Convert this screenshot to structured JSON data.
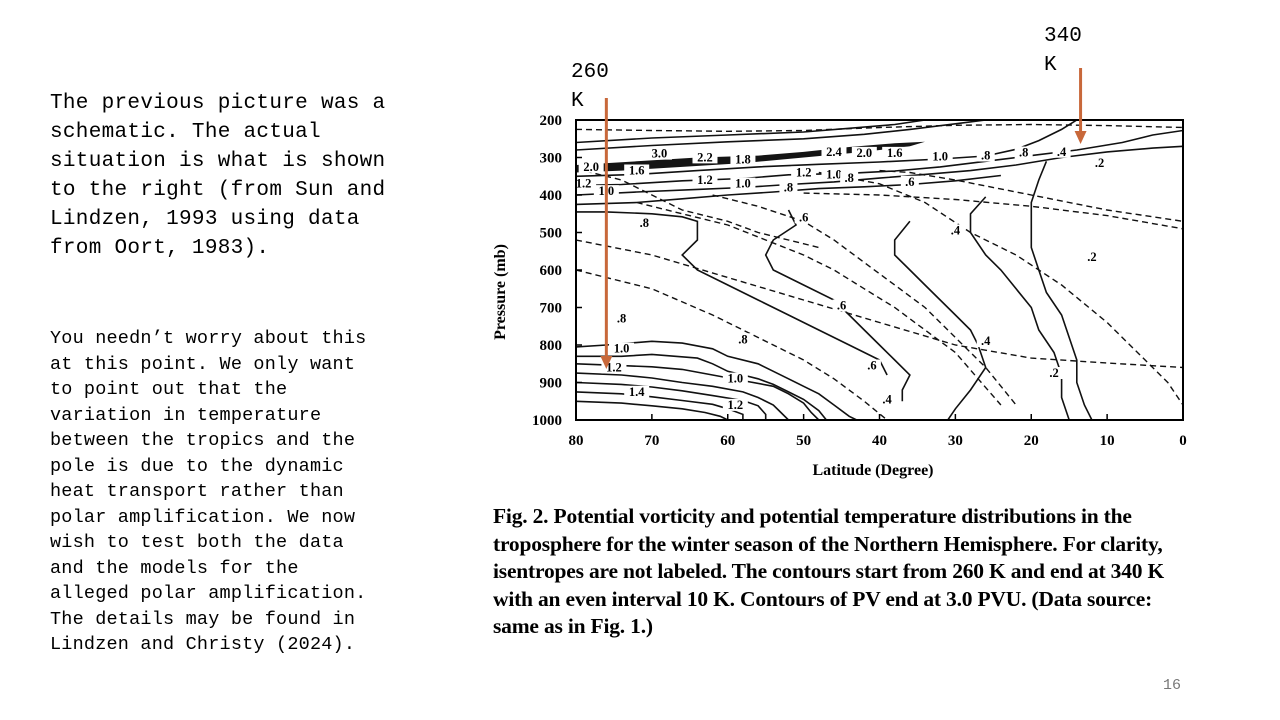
{
  "text": {
    "para1": "The previous picture was a\nschematic.  The actual\nsituation is what is shown\nto the right (from Sun and\nLindzen, 1993 using data\nfrom Oort, 1983).",
    "para2": "You needn’t worry about this\nat this point.  We only want\nto point out that the\nvariation in temperature\nbetween the tropics and the\npole is due to the dynamic\nheat transport rather than\npolar amplification.  We now\nwish to test both the data\nand the models for the\nalleged polar amplification.\nThe details may be found in\nLindzen and Christy (2024).",
    "arrow_left_label": "260\nK",
    "arrow_right_label": "340\nK",
    "caption_fig": "Fig. 2.",
    "caption_body": " Potential vorticity and potential temperature distributions in the troposphere for the winter season of the Northern Hemisphere. For clarity, isentropes are not labeled. The contours start from 260 K and end at 340 K with an even interval 10 K. Contours of PV end at 3.0 PVU. (Data source: same as in Fig. 1.)",
    "slide_number": "16"
  },
  "colors": {
    "arrow": "#c8683a",
    "ink": "#111111",
    "fill_dark": "#000000"
  },
  "chart_data": {
    "type": "contour",
    "xlabel": "Latitude (Degree)",
    "ylabel": "Pressure (mb)",
    "x_ticks": [
      80,
      70,
      60,
      50,
      40,
      30,
      20,
      10,
      0
    ],
    "y_ticks": [
      200,
      300,
      400,
      500,
      600,
      700,
      800,
      900,
      1000
    ],
    "xlim": [
      80,
      0
    ],
    "ylim": [
      1000,
      200
    ],
    "y_inverted": true,
    "isentropes_K": {
      "start": 260,
      "end": 340,
      "interval": 10,
      "labeled": false
    },
    "pv_contours": [
      {
        "label": "3.0",
        "lat": 69,
        "p": 295
      },
      {
        "label": "2.2",
        "lat": 63,
        "p": 305
      },
      {
        "label": "1.8",
        "lat": 58,
        "p": 310
      },
      {
        "label": "2.4",
        "lat": 46,
        "p": 290
      },
      {
        "label": "2.0",
        "lat": 42,
        "p": 293
      },
      {
        "label": "1.6",
        "lat": 38,
        "p": 293
      },
      {
        "label": "1.0",
        "lat": 32,
        "p": 303
      },
      {
        "label": ".8",
        "lat": 26,
        "p": 300
      },
      {
        "label": ".8",
        "lat": 21,
        "p": 292
      },
      {
        "label": ".4",
        "lat": 16,
        "p": 290
      },
      {
        "label": ".2",
        "lat": 11,
        "p": 320
      },
      {
        "label": "2.0",
        "lat": 78,
        "p": 330
      },
      {
        "label": "1.6",
        "lat": 72,
        "p": 340
      },
      {
        "label": "1.2",
        "lat": 79,
        "p": 375
      },
      {
        "label": "1.0",
        "lat": 76,
        "p": 395
      },
      {
        "label": "1.2",
        "lat": 63,
        "p": 365
      },
      {
        "label": "1.0",
        "lat": 58,
        "p": 375
      },
      {
        "label": "1.2",
        "lat": 50,
        "p": 345
      },
      {
        "label": "1.0",
        "lat": 46,
        "p": 350
      },
      {
        "label": ".8",
        "lat": 44,
        "p": 360
      },
      {
        "label": ".8",
        "lat": 52,
        "p": 385
      },
      {
        "label": ".6",
        "lat": 36,
        "p": 370
      },
      {
        "label": ".8",
        "lat": 71,
        "p": 480
      },
      {
        "label": ".6",
        "lat": 50,
        "p": 465
      },
      {
        "label": ".4",
        "lat": 30,
        "p": 500
      },
      {
        "label": ".2",
        "lat": 12,
        "p": 570
      },
      {
        "label": ".8",
        "lat": 74,
        "p": 735
      },
      {
        "label": ".6",
        "lat": 45,
        "p": 700
      },
      {
        "label": ".8",
        "lat": 58,
        "p": 790
      },
      {
        "label": "1.0",
        "lat": 74,
        "p": 815
      },
      {
        "label": "1.2",
        "lat": 75,
        "p": 865
      },
      {
        "label": "1.4",
        "lat": 72,
        "p": 930
      },
      {
        "label": "1.0",
        "lat": 59,
        "p": 895
      },
      {
        "label": "1.2",
        "lat": 59,
        "p": 965
      },
      {
        "label": ".6",
        "lat": 41,
        "p": 860
      },
      {
        "label": ".4",
        "lat": 39,
        "p": 950
      },
      {
        "label": ".4",
        "lat": 26,
        "p": 795
      },
      {
        "label": ".2",
        "lat": 17,
        "p": 880
      }
    ],
    "arrows": [
      {
        "label": "260 K",
        "lat": 76
      },
      {
        "label": "340 K",
        "lat": 13.5
      }
    ]
  }
}
